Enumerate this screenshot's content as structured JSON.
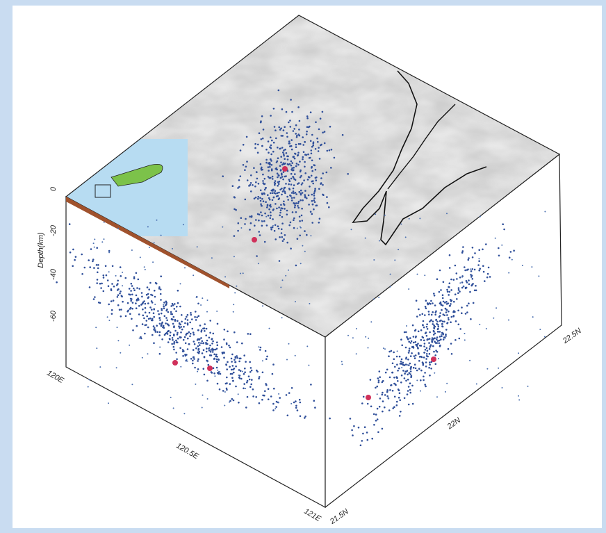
{
  "depth_axis": {
    "title": "Depth(km)",
    "ticks": [
      "0",
      "-20",
      "-40",
      "-60"
    ]
  },
  "x_axis_labels": [
    "120E",
    "120.5E",
    "121E"
  ],
  "y_axis_labels": [
    "21.5N",
    "22N",
    "22.5N"
  ]
}
